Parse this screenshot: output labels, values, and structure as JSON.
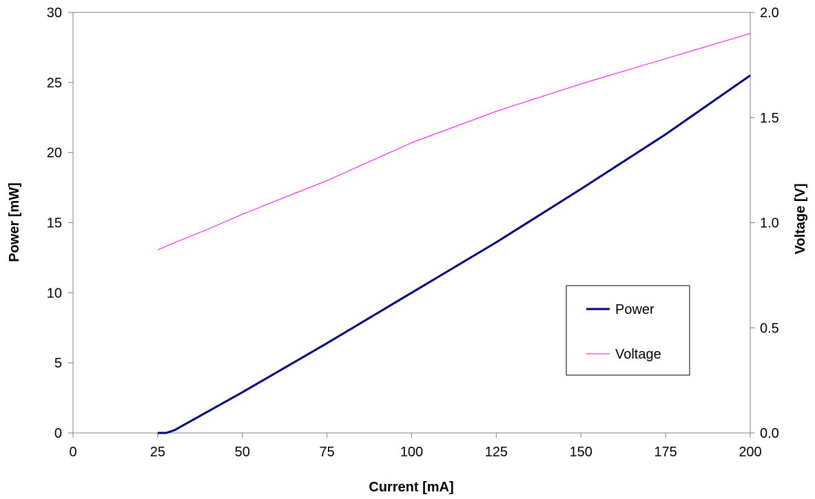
{
  "chart_data": {
    "type": "line",
    "xlabel": "Current [mA]",
    "ylabel": "Power [mW]",
    "y2label": "Voltage [V]",
    "xlim": [
      0,
      200
    ],
    "ylim": [
      0,
      30
    ],
    "y2lim": [
      0,
      2.0
    ],
    "x_ticks": [
      "0",
      "25",
      "50",
      "75",
      "100",
      "125",
      "150",
      "175",
      "200"
    ],
    "y_ticks": [
      "0",
      "5",
      "10",
      "15",
      "20",
      "25",
      "30"
    ],
    "y2_ticks": [
      "0.0",
      "0.5",
      "1.0",
      "1.5",
      "2.0"
    ],
    "grid": false,
    "legend_position": "center-right",
    "series": [
      {
        "name": "Power",
        "axis": "left",
        "color": "#000080",
        "x": [
          25,
          27.5,
          30,
          50,
          75,
          100,
          125,
          150,
          175,
          200
        ],
        "y": [
          0,
          0,
          0.2,
          2.9,
          6.4,
          10.0,
          13.6,
          17.4,
          21.3,
          25.5
        ]
      },
      {
        "name": "Voltage",
        "axis": "right",
        "color": "#ff00ff",
        "x": [
          25,
          30,
          40,
          50,
          75,
          100,
          125,
          150,
          175,
          200
        ],
        "y": [
          0.87,
          0.905,
          0.97,
          1.04,
          1.2,
          1.38,
          1.53,
          1.66,
          1.78,
          1.9
        ]
      }
    ]
  }
}
